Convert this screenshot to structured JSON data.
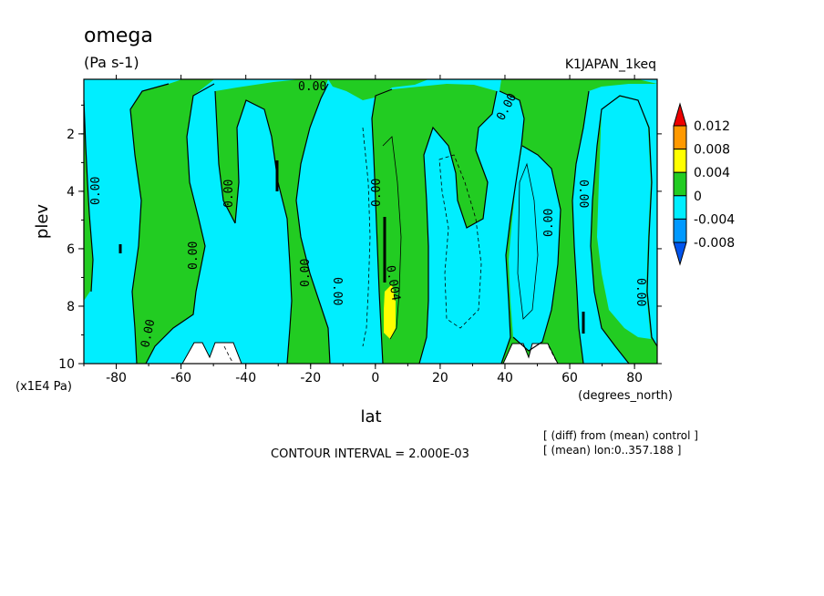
{
  "chart_data": {
    "type": "heatmap",
    "title": "omega",
    "subtitle": "(Pa s-1)",
    "experiment": "K1JAPAN_1keq",
    "xlabel": "lat",
    "ylabel": "plev",
    "x_units": "(degrees_north)",
    "y_units": "(x1E4 Pa)",
    "xlim": [
      -90,
      87
    ],
    "ylim": [
      10,
      0.1
    ],
    "x_ticks": [
      -80,
      -60,
      -40,
      -20,
      0,
      20,
      40,
      60,
      80
    ],
    "y_ticks": [
      2,
      4,
      6,
      8,
      10
    ],
    "contour_interval_text": "CONTOUR INTERVAL = 2.000E-03",
    "notes": [
      "[ (diff) from (mean) control ]",
      "[ (mean) lon:0..357.188 ]"
    ],
    "contour_labels": [
      "0.00",
      "0.00",
      "0.00",
      "0.00",
      "0.00",
      "0.00",
      "0.00",
      "0.00",
      "0.00",
      "0.00",
      "0.00",
      "0.00",
      "0.004"
    ],
    "colorbar": {
      "levels": [
        "0.012",
        "0.008",
        "0.004",
        "0",
        "-0.004",
        "-0.008"
      ],
      "colors": [
        "#ee0000",
        "#ff9900",
        "#ffff00",
        "#22cc22",
        "#00eeff",
        "#0099ff",
        "#0055ee"
      ]
    },
    "bands": [
      {
        "lat": [
          -90,
          -83
        ],
        "sign": "negative"
      },
      {
        "lat": [
          -83,
          -66
        ],
        "sign": "positive"
      },
      {
        "lat": [
          -66,
          -49
        ],
        "sign": "negative"
      },
      {
        "lat": [
          -49,
          -22
        ],
        "sign": "negative"
      },
      {
        "lat": [
          -22,
          -12
        ],
        "sign": "positive"
      },
      {
        "lat": [
          -12,
          -2
        ],
        "sign": "negative"
      },
      {
        "lat": [
          2,
          18
        ],
        "sign": "positive"
      },
      {
        "lat": [
          18,
          40
        ],
        "sign": "negative"
      },
      {
        "lat": [
          40,
          62
        ],
        "sign": "positive"
      },
      {
        "lat": [
          62,
          87
        ],
        "sign": "positive"
      }
    ]
  }
}
